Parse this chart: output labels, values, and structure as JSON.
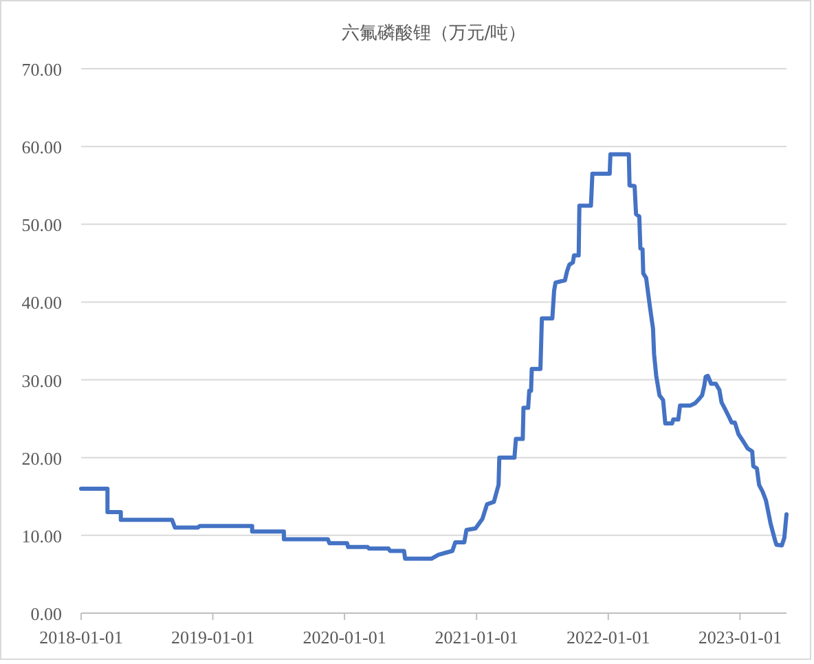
{
  "chart_data": {
    "type": "line",
    "title": "六氟磷酸锂（万元/吨）",
    "x": [
      "2018-01-01",
      "2018-03-15",
      "2018-03-15",
      "2018-04-21",
      "2018-04-21",
      "2018-09-10",
      "2018-09-18",
      "2018-11-20",
      "2018-11-26",
      "2019-04-20",
      "2019-04-20",
      "2019-07-17",
      "2019-07-17",
      "2019-11-16",
      "2019-11-20",
      "2020-01-08",
      "2020-01-11",
      "2020-03-05",
      "2020-03-09",
      "2020-05-02",
      "2020-05-06",
      "2020-06-14",
      "2020-06-17",
      "2020-08-29",
      "2020-09-17",
      "2020-10-10",
      "2020-10-26",
      "2020-11-03",
      "2020-11-28",
      "2020-12-04",
      "2020-12-29",
      "2021-01-17",
      "2021-01-30",
      "2021-02-18",
      "2021-03-03",
      "2021-03-05",
      "2021-04-16",
      "2021-04-20",
      "2021-05-09",
      "2021-05-11",
      "2021-05-24",
      "2021-05-27",
      "2021-06-01",
      "2021-06-03",
      "2021-06-27",
      "2021-07-01",
      "2021-07-30",
      "2021-08-04",
      "2021-08-08",
      "2021-09-03",
      "2021-09-09",
      "2021-09-15",
      "2021-09-25",
      "2021-09-28",
      "2021-10-11",
      "2021-10-13",
      "2021-11-14",
      "2021-11-18",
      "2022-01-05",
      "2022-01-07",
      "2022-02-27",
      "2022-03-01",
      "2022-03-15",
      "2022-03-19",
      "2022-03-28",
      "2022-03-31",
      "2022-04-06",
      "2022-04-08",
      "2022-04-16",
      "2022-04-21",
      "2022-04-27",
      "2022-05-05",
      "2022-05-08",
      "2022-05-14",
      "2022-05-23",
      "2022-06-02",
      "2022-06-08",
      "2022-06-27",
      "2022-06-30",
      "2022-07-14",
      "2022-07-19",
      "2022-08-17",
      "2022-08-30",
      "2022-09-11",
      "2022-09-18",
      "2022-09-24",
      "2022-09-28",
      "2022-10-04",
      "2022-10-13",
      "2022-10-26",
      "2022-11-05",
      "2022-11-11",
      "2022-11-20",
      "2022-12-03",
      "2022-12-09",
      "2022-12-18",
      "2022-12-28",
      "2023-01-10",
      "2023-01-22",
      "2023-02-04",
      "2023-02-07",
      "2023-02-17",
      "2023-02-23",
      "2023-03-05",
      "2023-03-14",
      "2023-03-27",
      "2023-04-08",
      "2023-04-12",
      "2023-04-27",
      "2023-05-04",
      "2023-05-10"
    ],
    "series": [
      {
        "color": "#4472c4",
        "values": [
          16.0,
          16.0,
          13.0,
          13.0,
          12.0,
          12.0,
          11.0,
          11.0,
          11.2,
          11.2,
          10.5,
          10.5,
          9.5,
          9.5,
          9.0,
          9.0,
          8.5,
          8.5,
          8.3,
          8.3,
          8.0,
          8.0,
          7.0,
          7.0,
          7.5,
          7.8,
          8.0,
          9.1,
          9.1,
          10.7,
          10.9,
          12.1,
          14.0,
          14.3,
          16.5,
          20.0,
          20.0,
          22.4,
          22.4,
          26.4,
          26.4,
          28.6,
          28.6,
          31.4,
          31.4,
          37.9,
          37.9,
          41.5,
          42.5,
          42.8,
          44.0,
          44.8,
          45.1,
          46.0,
          46.0,
          52.4,
          52.4,
          56.5,
          56.5,
          59.0,
          59.0,
          55.0,
          54.9,
          51.3,
          51.0,
          46.9,
          46.8,
          43.7,
          43.1,
          41.3,
          39.2,
          36.6,
          33.3,
          30.5,
          28.0,
          27.4,
          24.4,
          24.4,
          24.9,
          24.9,
          26.7,
          26.7,
          27.0,
          27.6,
          28.0,
          29.2,
          30.4,
          30.5,
          29.5,
          29.5,
          28.7,
          27.1,
          26.3,
          25.1,
          24.5,
          24.5,
          23.0,
          22.1,
          21.2,
          20.8,
          18.9,
          18.6,
          16.5,
          15.6,
          14.5,
          11.5,
          9.4,
          8.8,
          8.7,
          9.7,
          12.7
        ]
      }
    ],
    "xlim": [
      "2018-01-01",
      "2023-05-10"
    ],
    "xticks": [
      "2018-01-01",
      "2019-01-01",
      "2020-01-01",
      "2021-01-01",
      "2022-01-01",
      "2023-01-01"
    ],
    "ylim": [
      0,
      70
    ],
    "yticks": [
      {
        "value": 0,
        "label": "0.00"
      },
      {
        "value": 10,
        "label": "10.00"
      },
      {
        "value": 20,
        "label": "20.00"
      },
      {
        "value": 30,
        "label": "30.00"
      },
      {
        "value": 40,
        "label": "40.00"
      },
      {
        "value": 50,
        "label": "50.00"
      },
      {
        "value": 60,
        "label": "60.00"
      },
      {
        "value": 70,
        "label": "70.00"
      }
    ],
    "grid": "y",
    "marker": "none",
    "line_style": "solid"
  }
}
